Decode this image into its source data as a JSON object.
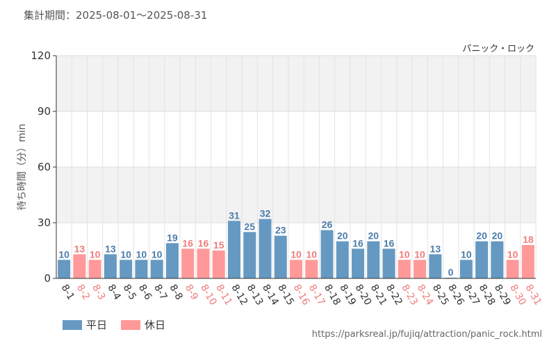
{
  "header": {
    "period_label": "集計期間：2025-08-01～2025-08-31"
  },
  "chart_data": {
    "type": "bar",
    "title": "パニック・ロック",
    "ylabel": "待ち時間（分）min",
    "xlabel": "",
    "ylim": [
      0,
      120
    ],
    "yticks": [
      0,
      30,
      60,
      90,
      120
    ],
    "grid": true,
    "legend_placement": "bottom-left",
    "categories": [
      "8-1",
      "8-2",
      "8-3",
      "8-4",
      "8-5",
      "8-6",
      "8-7",
      "8-8",
      "8-9",
      "8-10",
      "8-11",
      "8-12",
      "8-13",
      "8-14",
      "8-15",
      "8-16",
      "8-17",
      "8-18",
      "8-19",
      "8-20",
      "8-21",
      "8-22",
      "8-23",
      "8-24",
      "8-25",
      "8-26",
      "8-27",
      "8-28",
      "8-29",
      "8-30",
      "8-31"
    ],
    "values": [
      10,
      13,
      10,
      13,
      10,
      10,
      10,
      19,
      16,
      16,
      15,
      31,
      25,
      32,
      23,
      10,
      10,
      26,
      20,
      16,
      20,
      16,
      10,
      10,
      13,
      0,
      10,
      20,
      20,
      10,
      18
    ],
    "day_type": [
      "weekday",
      "holiday",
      "holiday",
      "weekday",
      "weekday",
      "weekday",
      "weekday",
      "weekday",
      "holiday",
      "holiday",
      "holiday",
      "weekday",
      "weekday",
      "weekday",
      "weekday",
      "holiday",
      "holiday",
      "weekday",
      "weekday",
      "weekday",
      "weekday",
      "weekday",
      "holiday",
      "holiday",
      "weekday",
      "weekday",
      "weekday",
      "weekday",
      "weekday",
      "holiday",
      "holiday"
    ],
    "series": [
      {
        "name": "平日",
        "key": "weekday",
        "color": "#6699c2",
        "label_color": "#4a7cab"
      },
      {
        "name": "休日",
        "key": "holiday",
        "color": "#ff9999",
        "label_color": "#f07c7c"
      }
    ]
  },
  "footer": {
    "source_url": "https://parksreal.jp/fujiq/attraction/panic_rock.html"
  }
}
